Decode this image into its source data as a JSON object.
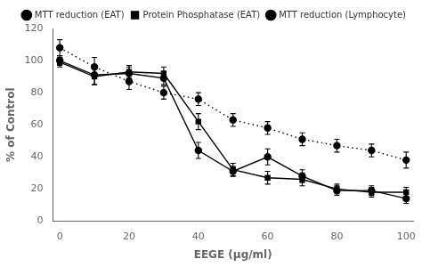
{
  "chart_data": {
    "type": "line",
    "x": [
      0,
      10,
      20,
      30,
      40,
      50,
      60,
      70,
      80,
      90,
      100
    ],
    "series": [
      {
        "name": "MTT reduction (EAT)",
        "values": [
          100,
          91,
          92,
          89,
          44,
          31,
          40,
          28,
          19,
          19,
          14
        ],
        "errors": [
          3,
          6,
          4,
          4,
          5,
          3,
          5,
          4,
          3,
          3,
          3
        ],
        "marker": "circle",
        "line_style": "solid"
      },
      {
        "name": "Protein Phosphatase (EAT)",
        "values": [
          99,
          90,
          93,
          92,
          62,
          32,
          27,
          26,
          20,
          18,
          18
        ],
        "errors": [
          3,
          5,
          4,
          4,
          5,
          4,
          4,
          4,
          3,
          3,
          3
        ],
        "marker": "square",
        "line_style": "solid"
      },
      {
        "name": "MTT reduction (Lymphocyte)",
        "values": [
          108,
          96,
          87,
          80,
          76,
          63,
          58,
          51,
          47,
          44,
          38
        ],
        "errors": [
          5,
          6,
          5,
          4,
          4,
          4,
          4,
          4,
          4,
          4,
          5
        ],
        "marker": "circle",
        "line_style": "dotted"
      }
    ],
    "color": "black",
    "xlabel": "EEGE (μg/ml)",
    "ylabel": "% of Control",
    "xlim": [
      -2,
      102
    ],
    "ylim": [
      0,
      120
    ],
    "xticks": [
      0,
      20,
      40,
      60,
      80,
      100
    ],
    "yticks": [
      0,
      20,
      40,
      60,
      80,
      100,
      120
    ],
    "grid": false,
    "legend": "upper right"
  }
}
